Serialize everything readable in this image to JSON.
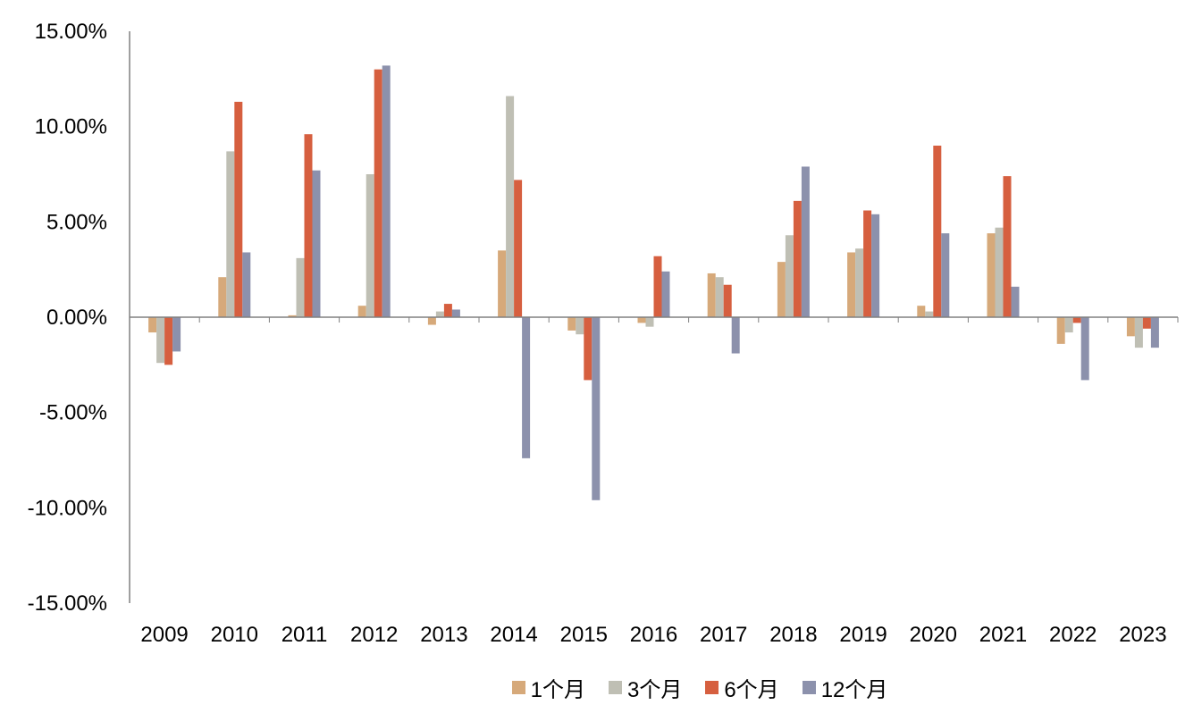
{
  "chart_data": {
    "type": "bar",
    "categories": [
      "2009",
      "2010",
      "2011",
      "2012",
      "2013",
      "2014",
      "2015",
      "2016",
      "2017",
      "2018",
      "2019",
      "2020",
      "2021",
      "2022",
      "2023"
    ],
    "series": [
      {
        "name": "1个月",
        "color": "#D6A97A",
        "values": [
          -0.8,
          2.1,
          0.1,
          0.6,
          -0.4,
          3.5,
          -0.7,
          -0.3,
          2.3,
          2.9,
          3.4,
          0.6,
          4.4,
          -1.4,
          -1.0
        ]
      },
      {
        "name": "3个月",
        "color": "#BFBFB4",
        "values": [
          -2.4,
          8.7,
          3.1,
          7.5,
          0.3,
          11.6,
          -0.9,
          -0.5,
          2.1,
          4.3,
          3.6,
          0.3,
          4.7,
          -0.8,
          -1.6
        ]
      },
      {
        "name": "6个月",
        "color": "#D65F3F",
        "values": [
          -2.5,
          11.3,
          9.6,
          13.0,
          0.7,
          7.2,
          -3.3,
          3.2,
          1.7,
          6.1,
          5.6,
          9.0,
          7.4,
          -0.3,
          -0.6
        ]
      },
      {
        "name": "12个月",
        "color": "#8C91AC",
        "values": [
          -1.8,
          3.4,
          7.7,
          13.2,
          0.4,
          -7.4,
          -9.6,
          2.4,
          -1.9,
          7.9,
          5.4,
          4.4,
          1.6,
          -3.3,
          -1.6
        ]
      }
    ],
    "yticks": [
      "15.00%",
      "10.00%",
      "5.00%",
      "0.00%",
      "-5.00%",
      "-10.00%",
      "-15.00%"
    ],
    "ylim": [
      -15,
      15
    ],
    "title": "",
    "xlabel": "",
    "ylabel": "",
    "grid": false,
    "legend_position": "bottom"
  }
}
